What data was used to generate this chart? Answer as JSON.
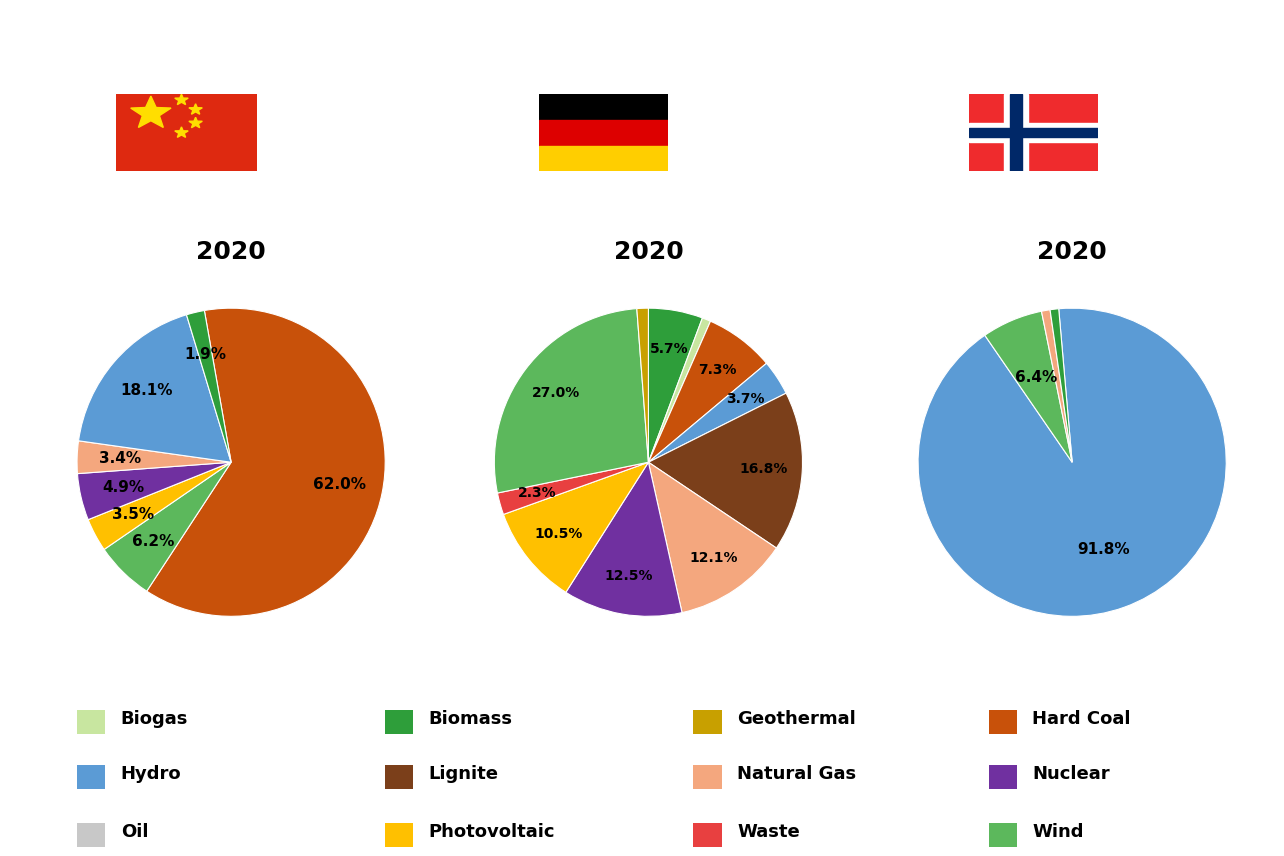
{
  "colors": {
    "Biogas": "#c8e6a0",
    "Biomass": "#2e9e3a",
    "Geothermal": "#c8a000",
    "Hard Coal": "#c8510a",
    "Hydro": "#5b9bd5",
    "Lignite": "#7b3f1a",
    "Natural Gas": "#f4a77e",
    "Nuclear": "#7030a0",
    "Oil": "#c8c8c8",
    "Photovoltaic": "#ffc000",
    "Waste": "#e84040",
    "Wind": "#5cb85c"
  },
  "china": {
    "title": "2020",
    "slices": [
      {
        "label": "Hard Coal",
        "value": 62.0
      },
      {
        "label": "Wind",
        "value": 6.2
      },
      {
        "label": "Photovoltaic",
        "value": 3.5
      },
      {
        "label": "Nuclear",
        "value": 4.9
      },
      {
        "label": "Natural Gas",
        "value": 3.4
      },
      {
        "label": "Hydro",
        "value": 18.1
      },
      {
        "label": "Biomass",
        "value": 1.9
      }
    ],
    "startangle": 100,
    "pctdistance": 0.72
  },
  "germany": {
    "title": "2020",
    "slices": [
      {
        "label": "Biomass",
        "value": 5.7
      },
      {
        "label": "Biogas",
        "value": 0.9
      },
      {
        "label": "Hard Coal",
        "value": 7.3
      },
      {
        "label": "Hydro",
        "value": 3.7
      },
      {
        "label": "Lignite",
        "value": 16.8
      },
      {
        "label": "Natural Gas",
        "value": 12.1
      },
      {
        "label": "Nuclear",
        "value": 12.5
      },
      {
        "label": "Photovoltaic",
        "value": 10.5
      },
      {
        "label": "Waste",
        "value": 2.3
      },
      {
        "label": "Wind",
        "value": 27.0
      },
      {
        "label": "Geothermal",
        "value": 1.2
      }
    ],
    "startangle": 90,
    "pctdistance": 0.75
  },
  "norway": {
    "title": "2020",
    "slices": [
      {
        "label": "Hydro",
        "value": 91.8
      },
      {
        "label": "Wind",
        "value": 6.4
      },
      {
        "label": "Natural Gas",
        "value": 0.9
      },
      {
        "label": "Biomass",
        "value": 0.9
      }
    ],
    "startangle": 95,
    "pctdistance": 0.6
  },
  "legend_order": [
    "Biogas",
    "Biomass",
    "Geothermal",
    "Hard Coal",
    "Hydro",
    "Lignite",
    "Natural Gas",
    "Nuclear",
    "Oil",
    "Photovoltaic",
    "Waste",
    "Wind"
  ],
  "fig_width": 12.84,
  "fig_height": 8.56
}
